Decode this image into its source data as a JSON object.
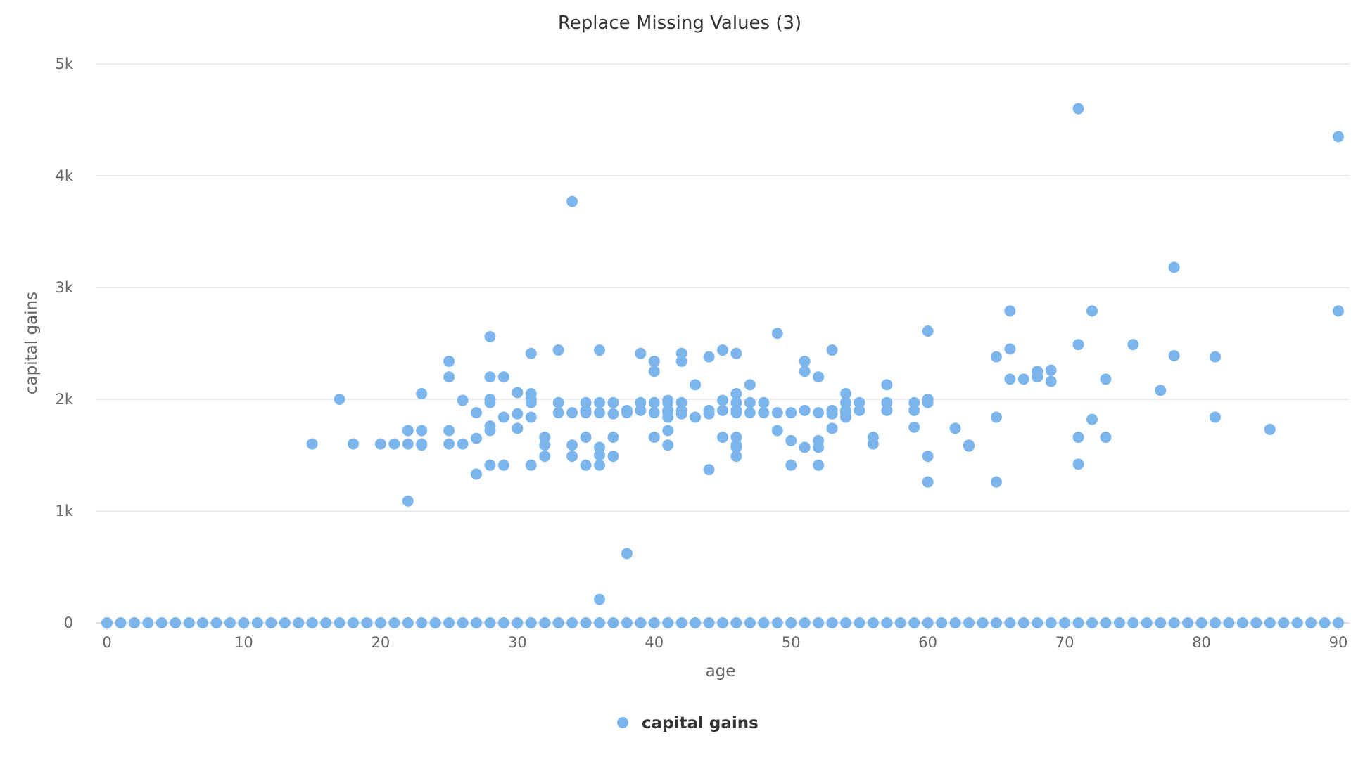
{
  "chart_data": {
    "type": "scatter",
    "title": "Replace Missing Values (3)",
    "xlabel": "age",
    "ylabel": "capital gains",
    "xlim": [
      0,
      90
    ],
    "ylim": [
      0,
      5000
    ],
    "x_ticks": [
      0,
      10,
      20,
      30,
      40,
      50,
      60,
      70,
      80,
      90
    ],
    "y_ticks": [
      0,
      1000,
      2000,
      3000,
      4000,
      5000
    ],
    "y_tick_labels": [
      "0",
      "1k",
      "2k",
      "3k",
      "4k",
      "5k"
    ],
    "grid": true,
    "legend_position": "bottom-center",
    "series": [
      {
        "name": "capital gains",
        "color": "#7cb5ec",
        "points": [
          [
            0,
            0
          ],
          [
            1,
            0
          ],
          [
            2,
            0
          ],
          [
            3,
            0
          ],
          [
            4,
            0
          ],
          [
            5,
            0
          ],
          [
            6,
            0
          ],
          [
            7,
            0
          ],
          [
            8,
            0
          ],
          [
            9,
            0
          ],
          [
            10,
            0
          ],
          [
            11,
            0
          ],
          [
            12,
            0
          ],
          [
            13,
            0
          ],
          [
            14,
            0
          ],
          [
            15,
            0
          ],
          [
            16,
            0
          ],
          [
            17,
            0
          ],
          [
            18,
            0
          ],
          [
            19,
            0
          ],
          [
            20,
            0
          ],
          [
            21,
            0
          ],
          [
            22,
            0
          ],
          [
            23,
            0
          ],
          [
            24,
            0
          ],
          [
            25,
            0
          ],
          [
            26,
            0
          ],
          [
            27,
            0
          ],
          [
            28,
            0
          ],
          [
            29,
            0
          ],
          [
            30,
            0
          ],
          [
            31,
            0
          ],
          [
            32,
            0
          ],
          [
            33,
            0
          ],
          [
            34,
            0
          ],
          [
            35,
            0
          ],
          [
            36,
            0
          ],
          [
            37,
            0
          ],
          [
            38,
            0
          ],
          [
            39,
            0
          ],
          [
            40,
            0
          ],
          [
            41,
            0
          ],
          [
            42,
            0
          ],
          [
            43,
            0
          ],
          [
            44,
            0
          ],
          [
            45,
            0
          ],
          [
            46,
            0
          ],
          [
            47,
            0
          ],
          [
            48,
            0
          ],
          [
            49,
            0
          ],
          [
            50,
            0
          ],
          [
            51,
            0
          ],
          [
            52,
            0
          ],
          [
            53,
            0
          ],
          [
            54,
            0
          ],
          [
            55,
            0
          ],
          [
            56,
            0
          ],
          [
            57,
            0
          ],
          [
            58,
            0
          ],
          [
            59,
            0
          ],
          [
            60,
            0
          ],
          [
            61,
            0
          ],
          [
            62,
            0
          ],
          [
            63,
            0
          ],
          [
            64,
            0
          ],
          [
            65,
            0
          ],
          [
            66,
            0
          ],
          [
            67,
            0
          ],
          [
            68,
            0
          ],
          [
            69,
            0
          ],
          [
            70,
            0
          ],
          [
            71,
            0
          ],
          [
            72,
            0
          ],
          [
            73,
            0
          ],
          [
            74,
            0
          ],
          [
            75,
            0
          ],
          [
            76,
            0
          ],
          [
            77,
            0
          ],
          [
            78,
            0
          ],
          [
            79,
            0
          ],
          [
            80,
            0
          ],
          [
            81,
            0
          ],
          [
            82,
            0
          ],
          [
            83,
            0
          ],
          [
            84,
            0
          ],
          [
            85,
            0
          ],
          [
            86,
            0
          ],
          [
            87,
            0
          ],
          [
            88,
            0
          ],
          [
            89,
            0
          ],
          [
            90,
            0
          ],
          [
            15,
            1600
          ],
          [
            17,
            2000
          ],
          [
            18,
            1600
          ],
          [
            20,
            1600
          ],
          [
            21,
            1600
          ],
          [
            22,
            1600
          ],
          [
            22,
            1720
          ],
          [
            22,
            1090
          ],
          [
            23,
            1600
          ],
          [
            23,
            1590
          ],
          [
            23,
            1720
          ],
          [
            23,
            2050
          ],
          [
            25,
            1600
          ],
          [
            25,
            1720
          ],
          [
            25,
            2200
          ],
          [
            25,
            2340
          ],
          [
            26,
            1600
          ],
          [
            26,
            1990
          ],
          [
            27,
            1330
          ],
          [
            27,
            1650
          ],
          [
            27,
            1880
          ],
          [
            28,
            1410
          ],
          [
            28,
            1720
          ],
          [
            28,
            1760
          ],
          [
            28,
            1970
          ],
          [
            28,
            2000
          ],
          [
            28,
            2200
          ],
          [
            28,
            2560
          ],
          [
            29,
            1410
          ],
          [
            29,
            1840
          ],
          [
            29,
            2200
          ],
          [
            30,
            1740
          ],
          [
            30,
            1870
          ],
          [
            30,
            2060
          ],
          [
            31,
            1410
          ],
          [
            31,
            1840
          ],
          [
            31,
            1970
          ],
          [
            31,
            2000
          ],
          [
            31,
            2050
          ],
          [
            31,
            2410
          ],
          [
            32,
            1490
          ],
          [
            32,
            1590
          ],
          [
            32,
            1660
          ],
          [
            33,
            1880
          ],
          [
            33,
            1970
          ],
          [
            33,
            2440
          ],
          [
            34,
            1490
          ],
          [
            34,
            1590
          ],
          [
            34,
            1880
          ],
          [
            34,
            3770
          ],
          [
            35,
            1410
          ],
          [
            35,
            1660
          ],
          [
            35,
            1880
          ],
          [
            35,
            1900
          ],
          [
            35,
            1970
          ],
          [
            36,
            210
          ],
          [
            36,
            1410
          ],
          [
            36,
            1500
          ],
          [
            36,
            1570
          ],
          [
            36,
            1880
          ],
          [
            36,
            1970
          ],
          [
            36,
            2440
          ],
          [
            37,
            1490
          ],
          [
            37,
            1660
          ],
          [
            37,
            1870
          ],
          [
            37,
            1970
          ],
          [
            38,
            620
          ],
          [
            38,
            1880
          ],
          [
            38,
            1900
          ],
          [
            39,
            1900
          ],
          [
            39,
            1970
          ],
          [
            39,
            2410
          ],
          [
            40,
            1660
          ],
          [
            40,
            1880
          ],
          [
            40,
            1970
          ],
          [
            40,
            2250
          ],
          [
            40,
            2340
          ],
          [
            41,
            1590
          ],
          [
            41,
            1720
          ],
          [
            41,
            1840
          ],
          [
            41,
            1880
          ],
          [
            41,
            1900
          ],
          [
            41,
            1970
          ],
          [
            41,
            1990
          ],
          [
            42,
            1870
          ],
          [
            42,
            1900
          ],
          [
            42,
            1970
          ],
          [
            42,
            2340
          ],
          [
            42,
            2410
          ],
          [
            43,
            1840
          ],
          [
            43,
            2130
          ],
          [
            44,
            1370
          ],
          [
            44,
            1870
          ],
          [
            44,
            1900
          ],
          [
            44,
            2380
          ],
          [
            45,
            1660
          ],
          [
            45,
            1900
          ],
          [
            45,
            1990
          ],
          [
            45,
            2440
          ],
          [
            46,
            1490
          ],
          [
            46,
            1570
          ],
          [
            46,
            1590
          ],
          [
            46,
            1660
          ],
          [
            46,
            1880
          ],
          [
            46,
            1900
          ],
          [
            46,
            1970
          ],
          [
            46,
            2050
          ],
          [
            46,
            2410
          ],
          [
            47,
            1880
          ],
          [
            47,
            1970
          ],
          [
            47,
            2130
          ],
          [
            48,
            1880
          ],
          [
            48,
            1970
          ],
          [
            49,
            1720
          ],
          [
            49,
            1880
          ],
          [
            49,
            2590
          ],
          [
            50,
            1410
          ],
          [
            50,
            1630
          ],
          [
            50,
            1880
          ],
          [
            51,
            1570
          ],
          [
            51,
            1900
          ],
          [
            51,
            2250
          ],
          [
            51,
            2340
          ],
          [
            52,
            1410
          ],
          [
            52,
            1570
          ],
          [
            52,
            1630
          ],
          [
            52,
            1880
          ],
          [
            52,
            2200
          ],
          [
            53,
            1740
          ],
          [
            53,
            1870
          ],
          [
            53,
            1900
          ],
          [
            53,
            2440
          ],
          [
            54,
            1840
          ],
          [
            54,
            1880
          ],
          [
            54,
            1900
          ],
          [
            54,
            1970
          ],
          [
            54,
            2050
          ],
          [
            55,
            1900
          ],
          [
            55,
            1970
          ],
          [
            56,
            1600
          ],
          [
            56,
            1660
          ],
          [
            57,
            1900
          ],
          [
            57,
            1970
          ],
          [
            57,
            2130
          ],
          [
            59,
            1750
          ],
          [
            59,
            1900
          ],
          [
            59,
            1970
          ],
          [
            60,
            1260
          ],
          [
            60,
            1490
          ],
          [
            60,
            1970
          ],
          [
            60,
            2000
          ],
          [
            60,
            2610
          ],
          [
            62,
            1740
          ],
          [
            63,
            1580
          ],
          [
            63,
            1590
          ],
          [
            65,
            1260
          ],
          [
            65,
            1840
          ],
          [
            65,
            2380
          ],
          [
            66,
            2180
          ],
          [
            66,
            2450
          ],
          [
            66,
            2790
          ],
          [
            67,
            2180
          ],
          [
            68,
            2200
          ],
          [
            68,
            2250
          ],
          [
            69,
            2160
          ],
          [
            69,
            2260
          ],
          [
            71,
            1420
          ],
          [
            71,
            1660
          ],
          [
            71,
            2490
          ],
          [
            71,
            4600
          ],
          [
            72,
            1820
          ],
          [
            72,
            2790
          ],
          [
            73,
            1660
          ],
          [
            73,
            2180
          ],
          [
            75,
            2490
          ],
          [
            77,
            2080
          ],
          [
            78,
            2390
          ],
          [
            78,
            3180
          ],
          [
            81,
            1840
          ],
          [
            81,
            2380
          ],
          [
            85,
            1730
          ],
          [
            90,
            2790
          ],
          [
            90,
            4350
          ]
        ]
      }
    ]
  }
}
